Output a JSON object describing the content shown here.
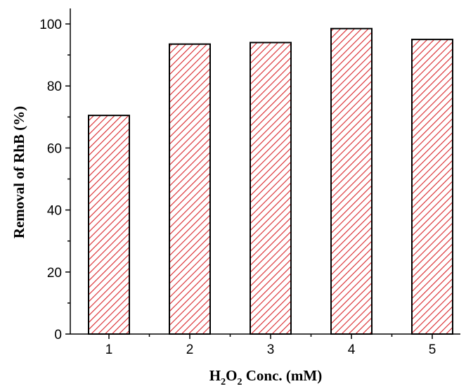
{
  "chart_data": {
    "type": "bar",
    "categories": [
      "1",
      "2",
      "3",
      "4",
      "5"
    ],
    "values": [
      70.5,
      93.5,
      94.0,
      98.5,
      95.0
    ],
    "xlabel": {
      "parts": [
        "H",
        "2",
        "O",
        "2",
        " Conc. (mM)"
      ]
    },
    "ylabel": "Removal of RhB (%)",
    "ylim": [
      0,
      105
    ],
    "yticks": [
      0,
      20,
      40,
      60,
      80,
      100
    ],
    "bar_pattern": "diagonal-hatch",
    "colors": {
      "hatch": "#d9262b",
      "bar_border": "#000000",
      "axis": "#000000"
    },
    "grid": false,
    "legend": "none"
  }
}
